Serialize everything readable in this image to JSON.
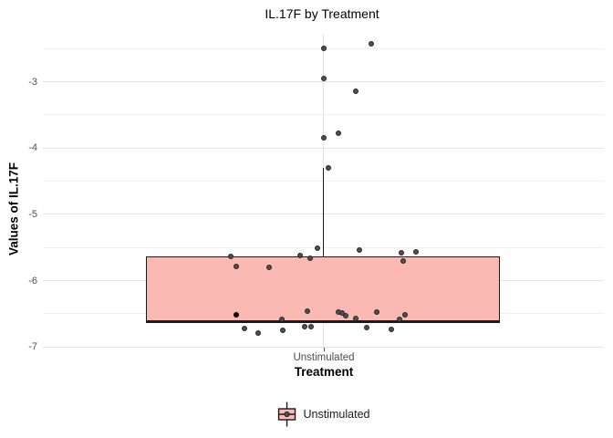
{
  "chart": {
    "title": "IL.17F by Treatment",
    "xlabel": "Treatment",
    "ylabel": "Values of IL.17F",
    "x_category": "Unstimulated",
    "legend": {
      "items": [
        {
          "label": "Unstimulated"
        }
      ]
    }
  },
  "chart_data": {
    "type": "boxplot",
    "title": "IL.17F by Treatment",
    "xlabel": "Treatment",
    "ylabel": "Values of IL.17F",
    "categories": [
      "Unstimulated"
    ],
    "ylim": [
      -7.01,
      -2.29
    ],
    "y_major_ticks": [
      -3,
      -4,
      -5,
      -6,
      -7
    ],
    "y_minor_ticks": [
      -2.5,
      -3.5,
      -4.5,
      -5.5,
      -6.5
    ],
    "grid": true,
    "legend_position": "bottom",
    "box": {
      "category": "Unstimulated",
      "q1": -6.63,
      "median": -6.62,
      "q3": -5.64,
      "whisker_high": -4.3,
      "whisker_low": -6.63,
      "center_frac": 0.5,
      "left_frac": 0.184,
      "right_frac": 0.815,
      "fill": "#FBB9B4",
      "stroke": "#1A1A1A"
    },
    "points": [
      {
        "x": 0.5,
        "y": -2.49
      },
      {
        "x": 0.586,
        "y": -2.43
      },
      {
        "x": 0.5,
        "y": -2.95
      },
      {
        "x": 0.558,
        "y": -3.15
      },
      {
        "x": 0.527,
        "y": -3.78
      },
      {
        "x": 0.5,
        "y": -3.85
      },
      {
        "x": 0.509,
        "y": -4.3
      },
      {
        "x": 0.335,
        "y": -5.64
      },
      {
        "x": 0.344,
        "y": -5.79
      },
      {
        "x": 0.404,
        "y": -5.8
      },
      {
        "x": 0.459,
        "y": -5.62
      },
      {
        "x": 0.476,
        "y": -5.66
      },
      {
        "x": 0.49,
        "y": -5.51
      },
      {
        "x": 0.564,
        "y": -5.54
      },
      {
        "x": 0.639,
        "y": -5.58
      },
      {
        "x": 0.643,
        "y": -5.7
      },
      {
        "x": 0.665,
        "y": -5.57
      },
      {
        "x": 0.345,
        "y": -6.52,
        "dark": true
      },
      {
        "x": 0.472,
        "y": -6.46
      },
      {
        "x": 0.426,
        "y": -6.58
      },
      {
        "x": 0.527,
        "y": -6.47
      },
      {
        "x": 0.534,
        "y": -6.49
      },
      {
        "x": 0.54,
        "y": -6.53
      },
      {
        "x": 0.558,
        "y": -6.57
      },
      {
        "x": 0.595,
        "y": -6.48
      },
      {
        "x": 0.636,
        "y": -6.58
      },
      {
        "x": 0.645,
        "y": -6.52
      },
      {
        "x": 0.36,
        "y": -6.72
      },
      {
        "x": 0.384,
        "y": -6.79
      },
      {
        "x": 0.428,
        "y": -6.75
      },
      {
        "x": 0.466,
        "y": -6.7
      },
      {
        "x": 0.478,
        "y": -6.69
      },
      {
        "x": 0.577,
        "y": -6.71
      },
      {
        "x": 0.621,
        "y": -6.73
      }
    ],
    "point_style": {
      "fill": "#4F4F4F",
      "stroke": "#262626",
      "dark_fill": "#0D0D0D",
      "radius": 3
    },
    "grid_colors": {
      "major": "#E3E3E3",
      "minor": "#F1F1F1"
    }
  }
}
